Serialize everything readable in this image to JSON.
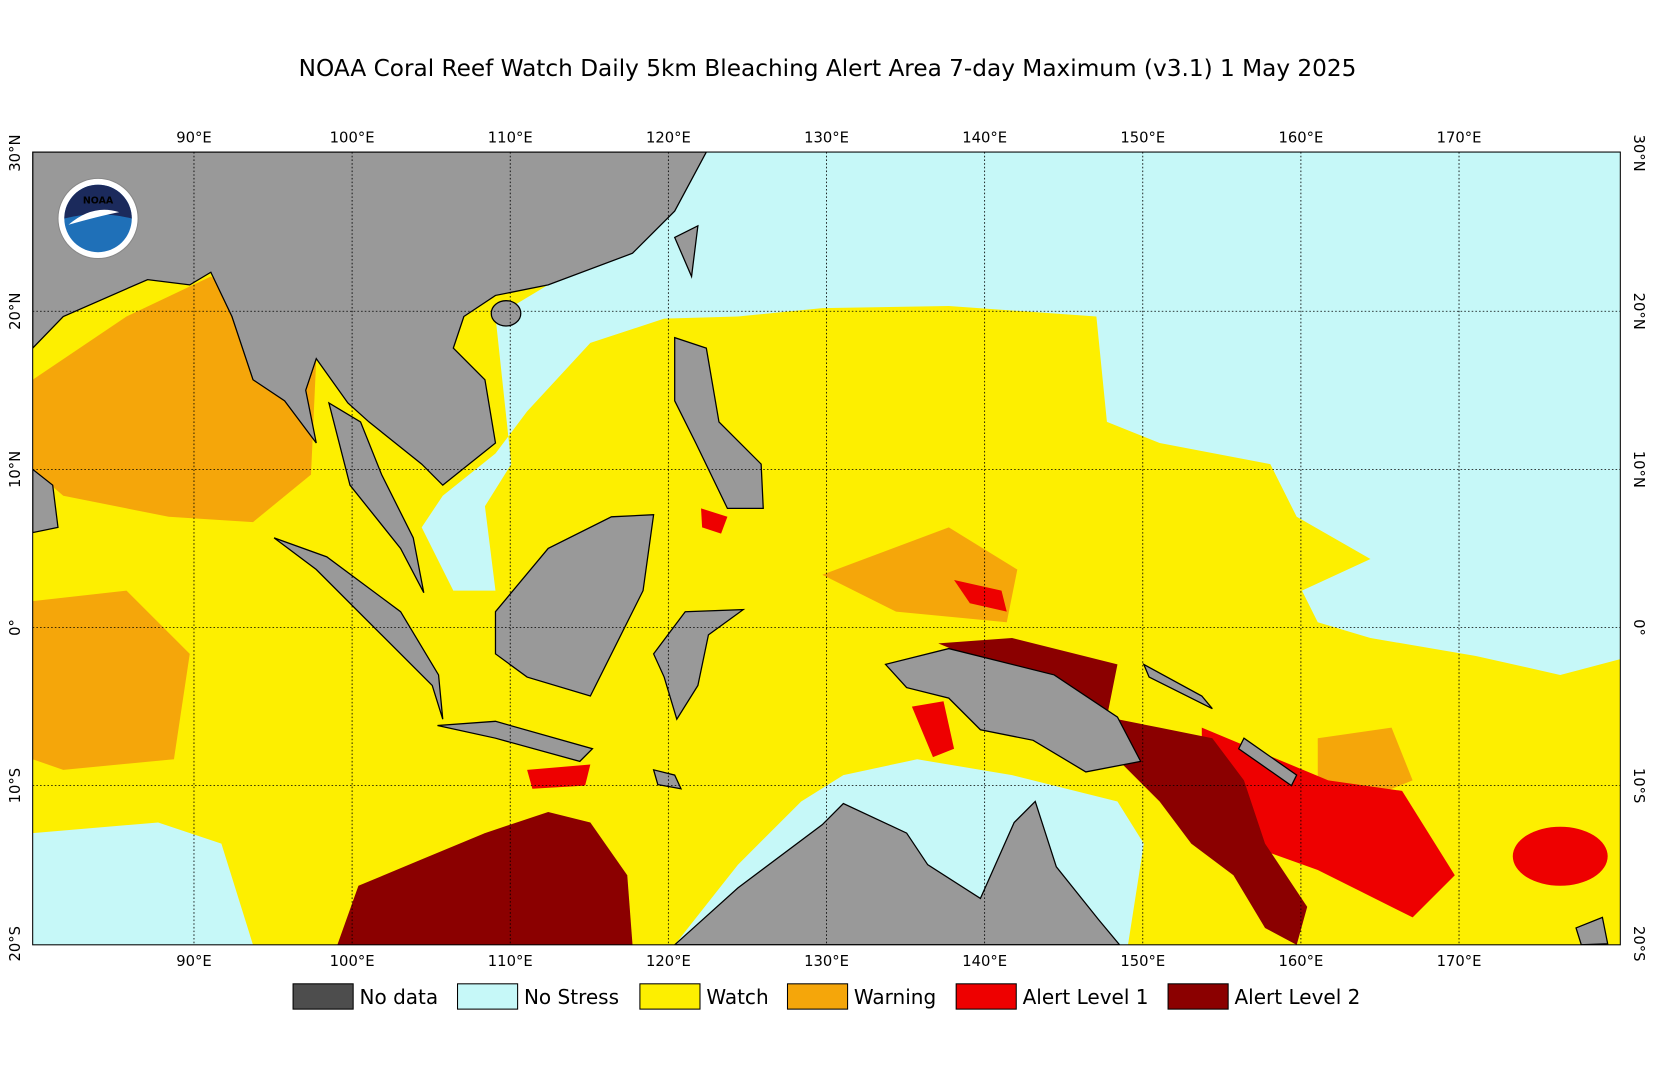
{
  "title": "NOAA Coral Reef Watch Daily 5km Bleaching Alert Area 7-day Maximum  (v3.1)   1 May 2025",
  "map": {
    "lon_labels": [
      "90°E",
      "100°E",
      "110°E",
      "120°E",
      "130°E",
      "140°E",
      "150°E",
      "160°E",
      "170°E"
    ],
    "lat_labels": [
      "30°N",
      "20°N",
      "10°N",
      "0°",
      "10°S",
      "20°S"
    ]
  },
  "legend": [
    {
      "label": "No data",
      "color": "#4d4d4d"
    },
    {
      "label": "No Stress",
      "color": "#c6f8f8"
    },
    {
      "label": "Watch",
      "color": "#fdef00"
    },
    {
      "label": "Warning",
      "color": "#f5a60a"
    },
    {
      "label": "Alert Level 1",
      "color": "#ee0000"
    },
    {
      "label": "Alert Level 2",
      "color": "#8b0000"
    }
  ]
}
